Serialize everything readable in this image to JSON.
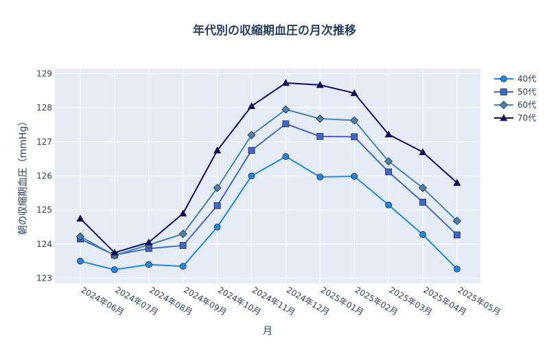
{
  "chart_data": {
    "type": "line",
    "title": "年代別の収縮期血圧の月次推移",
    "xlabel": "月",
    "ylabel": "朝の収縮期血圧（mmHg）",
    "categories": [
      "2024年06月",
      "2024年07月",
      "2024年08月",
      "2024年09月",
      "2024年10月",
      "2024年11月",
      "2024年12月",
      "2025年01月",
      "2025年02月",
      "2025年03月",
      "2025年04月",
      "2025年05月"
    ],
    "ylim": [
      122.85,
      129.15
    ],
    "yticks": [
      123,
      124,
      125,
      126,
      127,
      128,
      129
    ],
    "grid": true,
    "legend_position": "top-right",
    "series": [
      {
        "name": "40代",
        "color": "#1e88e5",
        "marker": "circle",
        "values": [
          123.5,
          123.25,
          123.4,
          123.35,
          124.5,
          126.0,
          126.57,
          125.97,
          125.99,
          125.15,
          124.28,
          123.27
        ]
      },
      {
        "name": "50代",
        "color": "#3f68cf",
        "marker": "square",
        "values": [
          124.15,
          123.68,
          123.87,
          123.96,
          125.13,
          126.75,
          127.53,
          127.16,
          127.15,
          126.12,
          125.23,
          124.27
        ]
      },
      {
        "name": "60代",
        "color": "#4682b4",
        "marker": "diamond",
        "values": [
          124.22,
          123.67,
          123.98,
          124.3,
          125.65,
          127.2,
          127.95,
          127.68,
          127.63,
          126.43,
          125.65,
          124.68
        ]
      },
      {
        "name": "70代",
        "color": "#0a0a6b",
        "marker": "triangle",
        "values": [
          124.75,
          123.75,
          124.05,
          124.9,
          126.75,
          128.05,
          128.73,
          128.67,
          128.43,
          127.22,
          126.7,
          125.8
        ]
      }
    ]
  }
}
